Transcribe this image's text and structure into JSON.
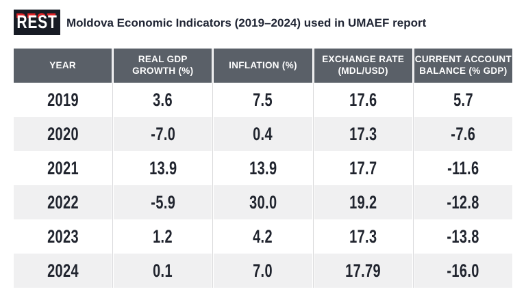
{
  "logo": {
    "text": "REST",
    "bg_color": "#171b24",
    "accent_color": "#e02227"
  },
  "title": "Moldova Economic Indicators (2019–2024) used in UMAEF report",
  "table": {
    "header_bg": "#5a6068",
    "alt_row_bg": "#f0f0f1",
    "divider_color": "#d9d9db",
    "value_color": "#20242e",
    "columns": [
      "YEAR",
      "REAL GDP\nGROWTH (%)",
      "INFLATION (%)",
      "EXCHANGE RATE\n(MDL/USD)",
      "CURRENT ACCOUNT\nBALANCE (% GDP)"
    ],
    "rows": [
      [
        "2019",
        "3.6",
        "7.5",
        "17.6",
        "5.7"
      ],
      [
        "2020",
        "-7.0",
        "0.4",
        "17.3",
        "-7.6"
      ],
      [
        "2021",
        "13.9",
        "13.9",
        "17.7",
        "-11.6"
      ],
      [
        "2022",
        "-5.9",
        "30.0",
        "19.2",
        "-12.8"
      ],
      [
        "2023",
        "1.2",
        "4.2",
        "17.3",
        "-13.8"
      ],
      [
        "2024",
        "0.1",
        "7.0",
        "17.79",
        "-16.0"
      ]
    ]
  },
  "chart_data": {
    "type": "table",
    "title": "Moldova Economic Indicators (2019–2024) used in UMAEF report",
    "columns": [
      "Year",
      "Real GDP Growth (%)",
      "Inflation (%)",
      "Exchange Rate (MDL/USD)",
      "Current Account Balance (% GDP)"
    ],
    "rows": [
      [
        2019,
        3.6,
        7.5,
        17.6,
        5.7
      ],
      [
        2020,
        -7.0,
        0.4,
        17.3,
        -7.6
      ],
      [
        2021,
        13.9,
        13.9,
        17.7,
        -11.6
      ],
      [
        2022,
        -5.9,
        30.0,
        19.2,
        -12.8
      ],
      [
        2023,
        1.2,
        4.2,
        17.3,
        -13.8
      ],
      [
        2024,
        0.1,
        7.0,
        17.79,
        -16.0
      ]
    ]
  }
}
